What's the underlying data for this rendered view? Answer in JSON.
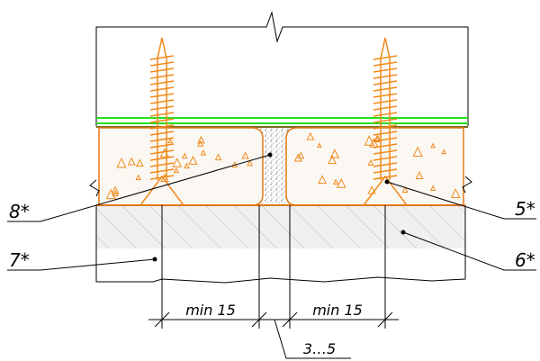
{
  "labels": {
    "left_top": "8*",
    "left_bottom": "7*",
    "right_top": "5*",
    "right_bottom": "6*"
  },
  "dimensions": {
    "left": "min 15",
    "right": "min 15",
    "gap": "3…5"
  }
}
